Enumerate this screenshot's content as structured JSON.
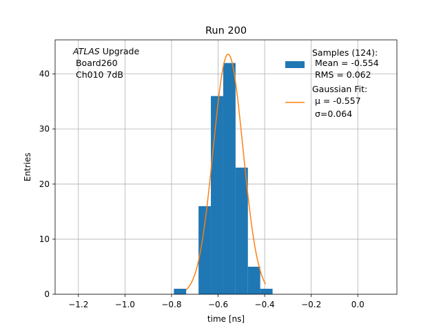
{
  "chart_data": {
    "type": "bar",
    "title": "Run 200",
    "xlabel": "time [ns]",
    "ylabel": "Entries",
    "xlim": [
      -1.3,
      0.168
    ],
    "ylim": [
      0,
      46.2
    ],
    "grid": true,
    "xticks": [
      -1.2,
      -1.0,
      -0.8,
      -0.6,
      -0.4,
      -0.2,
      0.0
    ],
    "xtick_labels": [
      "−1.2",
      "−1.0",
      "−0.8",
      "−0.6",
      "−0.4",
      "−0.2",
      "0.0"
    ],
    "yticks": [
      0,
      10,
      20,
      30,
      40
    ],
    "ytick_labels": [
      "0",
      "10",
      "20",
      "30",
      "40"
    ],
    "annotation": {
      "italic": "ATLAS",
      "rest": " Upgrade",
      "line2": " Board260",
      "line3": " Ch010 7dB"
    },
    "legend": {
      "placement": "upper right",
      "hist_label": [
        "Samples (124):",
        " Mean = -0.554",
        " RMS = 0.062"
      ],
      "fit_label": [
        "Gaussian Fit:",
        " μ = -0.557",
        " σ=0.064"
      ]
    },
    "bin_edges": [
      -0.79,
      -0.737,
      -0.684,
      -0.631,
      -0.578,
      -0.525,
      -0.472,
      -0.419,
      -0.366
    ],
    "counts": [
      1,
      0,
      16,
      36,
      42,
      23,
      5,
      1
    ],
    "fit": {
      "amplitude": 43.6,
      "mu": -0.557,
      "sigma": 0.064,
      "x_range": [
        -0.737,
        -0.396
      ]
    },
    "colors": {
      "hist": "#1f77b4",
      "fit": "#ff7f0e",
      "grid": "#b0b0b0"
    }
  }
}
